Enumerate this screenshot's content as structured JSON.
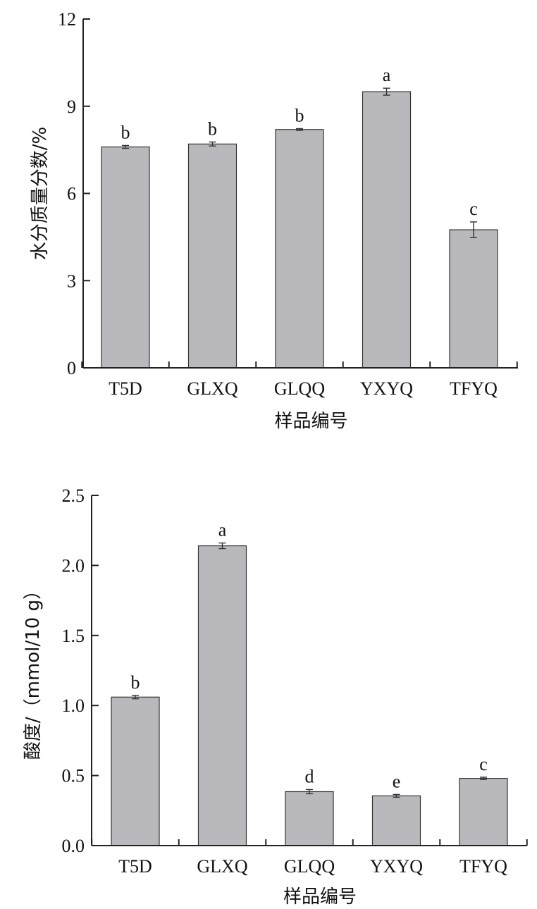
{
  "chart_data": [
    {
      "type": "bar",
      "categories": [
        "T5D",
        "GLXQ",
        "GLQQ",
        "YXYQ",
        "TFYQ"
      ],
      "values": [
        7.6,
        7.7,
        8.2,
        9.5,
        4.75
      ],
      "errors": [
        0.05,
        0.07,
        0.03,
        0.12,
        0.27
      ],
      "significance": [
        "b",
        "b",
        "b",
        "a",
        "c"
      ],
      "ylabel": "水分质量分数/%",
      "xlabel": "样品编号",
      "ylim": [
        0,
        12
      ],
      "yticks": [
        0,
        3,
        6,
        9,
        12
      ],
      "ytick_labels": [
        "0",
        "3",
        "6",
        "9",
        "12"
      ],
      "grid": false,
      "bar_color": "#b9b9bd"
    },
    {
      "type": "bar",
      "categories": [
        "T5D",
        "GLXQ",
        "GLQQ",
        "YXYQ",
        "TFYQ"
      ],
      "values": [
        1.06,
        2.14,
        0.385,
        0.355,
        0.48
      ],
      "errors": [
        0.012,
        0.02,
        0.015,
        0.01,
        0.008
      ],
      "significance": [
        "b",
        "a",
        "d",
        "e",
        "c"
      ],
      "ylabel": "酸度/（mmol/10 g）",
      "xlabel": "样品编号",
      "ylim": [
        0,
        2.5
      ],
      "yticks": [
        0,
        0.5,
        1.0,
        1.5,
        2.0,
        2.5
      ],
      "ytick_labels": [
        "0.0",
        "0.5",
        "1.0",
        "1.5",
        "2.0",
        "2.5"
      ],
      "grid": false,
      "bar_color": "#b9b9bd"
    }
  ]
}
